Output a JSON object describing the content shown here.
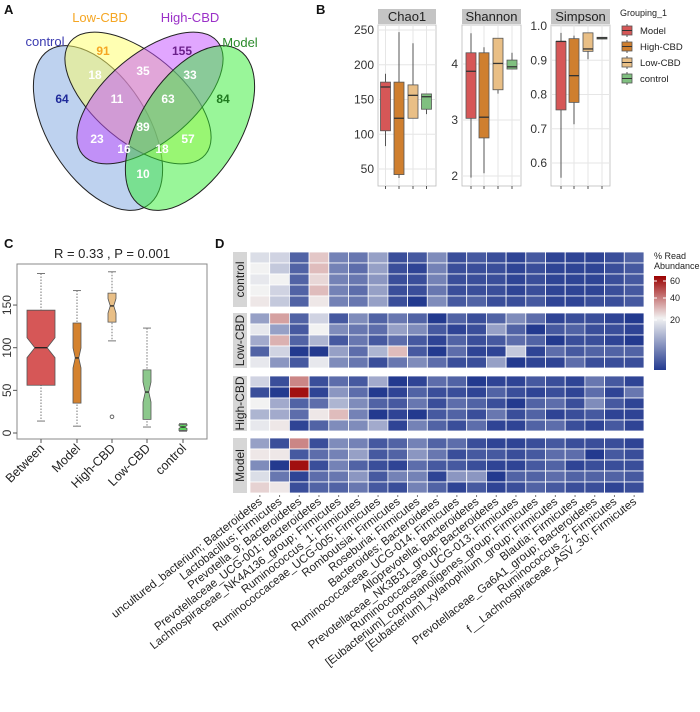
{
  "panels": {
    "a": "A",
    "b": "B",
    "c": "C",
    "d": "D"
  },
  "chart_data": [
    {
      "type": "venn",
      "panel": "A",
      "sets": [
        {
          "name": "control",
          "color": "#3b3bb0",
          "fill": "#7ea6e0"
        },
        {
          "name": "Low-CBD",
          "color": "#f5a623",
          "fill": "#ffff66"
        },
        {
          "name": "High-CBD",
          "color": "#9b30c8",
          "fill": "#c44dff"
        },
        {
          "name": "Model",
          "color": "#2a8a2a",
          "fill": "#33ee33"
        }
      ],
      "regions": [
        {
          "sets": "Low-CBD",
          "value": "91",
          "color": "#f5a623"
        },
        {
          "sets": "High-CBD",
          "value": "155",
          "color": "#6a1f8a"
        },
        {
          "sets": "control",
          "value": "64",
          "color": "#1f2a9a"
        },
        {
          "sets": "Model",
          "value": "84",
          "color": "#1f7a1f"
        },
        {
          "sets": "control&Low-CBD",
          "value": "18",
          "color": "#ffffff"
        },
        {
          "sets": "Low-CBD&High-CBD",
          "value": "35",
          "color": "#ffffff"
        },
        {
          "sets": "High-CBD&Model",
          "value": "33",
          "color": "#ffffff"
        },
        {
          "sets": "control&Low-CBD&High-CBD",
          "value": "11",
          "color": "#ffffff"
        },
        {
          "sets": "Low-CBD&High-CBD&Model",
          "value": "63",
          "color": "#ffffff"
        },
        {
          "sets": "all",
          "value": "89",
          "color": "#ffffff"
        },
        {
          "sets": "control&High-CBD",
          "value": "23",
          "color": "#ffffff"
        },
        {
          "sets": "Low-CBD&Model",
          "value": "57",
          "color": "#ffffff"
        },
        {
          "sets": "control&High-CBD&Model",
          "value": "16",
          "color": "#ffffff"
        },
        {
          "sets": "control&Low-CBD&Model",
          "value": "18",
          "color": "#ffffff"
        },
        {
          "sets": "control&Model",
          "value": "10",
          "color": "#ffffff"
        }
      ]
    },
    {
      "type": "boxplot",
      "panel": "B",
      "legend_title": "Grouping_1",
      "legend_position": "right",
      "groups": [
        {
          "name": "Model",
          "color": "#d65757"
        },
        {
          "name": "High-CBD",
          "color": "#cf7f2f"
        },
        {
          "name": "Low-CBD",
          "color": "#e9bf86"
        },
        {
          "name": "control",
          "color": "#80c080"
        }
      ],
      "facets": [
        {
          "title": "Chao1",
          "ylim": [
            40,
            260
          ],
          "yticks": [
            "50",
            "100",
            "150",
            "200",
            "250"
          ],
          "boxes": [
            [
              83,
              105,
              168,
              175,
              187
            ],
            [
              37,
              42,
              123,
              175,
              247
            ],
            [
              123,
              123,
              156,
              171,
              231
            ],
            [
              129,
              136,
              154,
              158,
              158
            ]
          ]
        },
        {
          "title": "Shannon",
          "ylim": [
            1.9,
            4.7
          ],
          "yticks": [
            "2",
            "3",
            "4"
          ],
          "boxes": [
            [
              1.97,
              3.03,
              3.87,
              4.2,
              4.55
            ],
            [
              2.05,
              2.68,
              3.05,
              4.2,
              4.3
            ],
            [
              3.47,
              3.54,
              4.01,
              4.46,
              4.46
            ],
            [
              3.91,
              3.91,
              3.95,
              4.07,
              4.2
            ]
          ]
        },
        {
          "title": "Simpson",
          "ylim": [
            0.55,
            1.02
          ],
          "yticks": [
            "0.6",
            "0.7",
            "0.8",
            "0.9",
            "1.0"
          ],
          "boxes": [
            [
              0.557,
              0.755,
              0.955,
              0.955,
              0.98
            ],
            [
              0.713,
              0.777,
              0.855,
              0.963,
              0.972
            ],
            [
              0.903,
              0.926,
              0.933,
              0.98,
              0.98
            ],
            [
              0.961,
              0.962,
              0.965,
              0.967,
              0.968
            ]
          ]
        }
      ]
    },
    {
      "type": "boxplot",
      "panel": "C",
      "title": "R =  0.33 ,  P =  0.001",
      "ylim": [
        0,
        200
      ],
      "yticks": [
        "0",
        "50",
        "100",
        "150"
      ],
      "categories": [
        "Between",
        "Model",
        "High-CBD",
        "Low-CBD",
        "control"
      ],
      "colors": [
        "#d65757",
        "#d4822e",
        "#e9bf86",
        "#8cc88c",
        "#5fd35f"
      ],
      "boxes": [
        [
          14,
          56,
          100,
          144,
          187
        ],
        [
          8,
          35,
          88,
          129,
          167
        ],
        [
          108,
          130,
          149,
          164,
          189
        ],
        [
          7,
          16,
          48,
          74,
          123
        ],
        [
          2,
          3,
          7,
          10,
          11
        ]
      ],
      "outliers": [
        [],
        [],
        [
          19
        ],
        [],
        []
      ]
    },
    {
      "type": "heatmap",
      "panel": "D",
      "legend_title": [
        "% Read",
        "Abundance"
      ],
      "legend_ticks": [
        "60",
        "40",
        "20"
      ],
      "color_low": "#233a8f",
      "color_mid": "#f2f2f2",
      "color_high": "#9b0000",
      "columns": [
        "uncultured_bacterium; Bacteroidetes",
        "Lactobacillus; Firmicutes",
        "Prevotella_9; Bacteroidetes",
        "Prevotellaceae_UCG-001; Bacteroidetes",
        "Lachnospiraceae_NK4A136_group; Firmicutes",
        "Ruminococcus_1; Firmicutes",
        "Ruminococcaceae_UCG-005; Firmicutes",
        "Romboutsia; Firmicutes",
        "Roseburia; Firmicutes",
        "Bacteroides; Bacteroidetes",
        "Ruminococcaceae_UCG-014; Firmicutes",
        "Alloprevotella; Bacteroidetes",
        "Prevotellaceae_NK3B31_group; Bacteroidetes",
        "Ruminococcaceae_UCG-013; Firmicutes",
        "[Eubacterium]_coprostanoligenes_group; Firmicutes",
        "[Eubacterium]_xylanophilum_group; Firmicutes",
        "Blautia; Firmicutes",
        "Prevotellaceae_Ga6A1_group; Bacteroidetes",
        "Ruminococcus_2; Firmicutes",
        "f__Lachnospiraceae_ASV_30; Firmicutes"
      ],
      "groups": [
        {
          "name": "control",
          "rows": [
            [
              18,
              17,
              6,
              28,
              9,
              8,
              12,
              4,
              5,
              10,
              4,
              5,
              4,
              3,
              5,
              3,
              3,
              3,
              4,
              6
            ],
            [
              20,
              16,
              6,
              30,
              9,
              7,
              12,
              4,
              3,
              9,
              4,
              4,
              4,
              3,
              4,
              3,
              3,
              3,
              4,
              5
            ],
            [
              19,
              20,
              6,
              25,
              9,
              8,
              11,
              4,
              4,
              9,
              4,
              4,
              4,
              3,
              4,
              3,
              3,
              3,
              4,
              5
            ],
            [
              20,
              17,
              6,
              30,
              9,
              7,
              12,
              4,
              4,
              8,
              4,
              4,
              4,
              3,
              4,
              3,
              3,
              3,
              4,
              5
            ],
            [
              22,
              16,
              6,
              22,
              9,
              8,
              12,
              4,
              2,
              10,
              5,
              6,
              4,
              4,
              5,
              3,
              3,
              4,
              4,
              5
            ]
          ]
        },
        {
          "name": "Low-CBD",
          "rows": [
            [
              12,
              35,
              6,
              17,
              5,
              10,
              6,
              8,
              6,
              2,
              6,
              4,
              6,
              10,
              7,
              3,
              4,
              4,
              3,
              2
            ],
            [
              19,
              12,
              5,
              20,
              10,
              8,
              7,
              12,
              10,
              5,
              3,
              4,
              12,
              6,
              2,
              5,
              6,
              4,
              4,
              3
            ],
            [
              13,
              32,
              6,
              14,
              5,
              8,
              5,
              7,
              5,
              3,
              6,
              4,
              5,
              7,
              6,
              2,
              4,
              4,
              3,
              2
            ],
            [
              6,
              17,
              2,
              2,
              12,
              7,
              14,
              30,
              5,
              2,
              7,
              3,
              3,
              16,
              3,
              7,
              5,
              6,
              6,
              6
            ],
            [
              19,
              11,
              5,
              19,
              10,
              8,
              4,
              8,
              10,
              7,
              4,
              4,
              12,
              2,
              3,
              3,
              7,
              4,
              4,
              4
            ]
          ]
        },
        {
          "name": "High-CBD",
          "rows": [
            [
              17,
              4,
              40,
              4,
              7,
              5,
              13,
              2,
              3,
              7,
              6,
              2,
              3,
              3,
              5,
              4,
              3,
              8,
              5,
              3
            ],
            [
              4,
              2,
              62,
              3,
              11,
              7,
              2,
              3,
              6,
              4,
              4,
              3,
              6,
              4,
              3,
              4,
              3,
              7,
              3,
              8
            ],
            [
              20,
              13,
              6,
              7,
              14,
              10,
              6,
              5,
              8,
              4,
              7,
              6,
              4,
              2,
              6,
              7,
              4,
              10,
              5,
              3
            ],
            [
              14,
              13,
              7,
              22,
              30,
              9,
              2,
              3,
              2,
              5,
              6,
              4,
              8,
              4,
              6,
              3,
              4,
              5,
              3,
              3
            ],
            [
              19,
              22,
              3,
              6,
              10,
              10,
              13,
              3,
              9,
              6,
              4,
              7,
              3,
              3,
              6,
              7,
              4,
              3,
              5,
              3
            ]
          ]
        },
        {
          "name": "Model",
          "rows": [
            [
              12,
              4,
              40,
              4,
              10,
              9,
              5,
              6,
              9,
              6,
              7,
              4,
              3,
              3,
              4,
              5,
              4,
              4,
              4,
              3
            ],
            [
              22,
              22,
              5,
              7,
              9,
              12,
              5,
              6,
              11,
              8,
              4,
              5,
              5,
              4,
              5,
              7,
              7,
              2,
              5,
              4
            ],
            [
              10,
              2,
              62,
              4,
              9,
              6,
              4,
              3,
              7,
              5,
              5,
              4,
              3,
              3,
              5,
              6,
              3,
              4,
              4,
              4
            ],
            [
              18,
              8,
              3,
              7,
              8,
              11,
              5,
              9,
              9,
              3,
              11,
              11,
              2,
              6,
              6,
              7,
              6,
              6,
              6,
              5
            ],
            [
              26,
              22,
              4,
              6,
              6,
              8,
              5,
              4,
              9,
              6,
              3,
              5,
              3,
              4,
              6,
              5,
              4,
              4,
              3,
              4
            ]
          ]
        }
      ]
    }
  ]
}
